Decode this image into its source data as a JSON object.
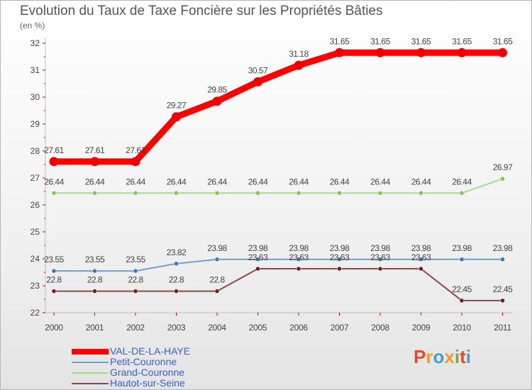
{
  "title": "Evolution du Taux de Taxe Foncière sur les Propriétés Bâties",
  "unit_label": "(en %)",
  "logo": {
    "letters": [
      "P",
      "r",
      "o",
      "x",
      "i",
      "t",
      "i"
    ],
    "colors": [
      "#e6462c",
      "#f29b1f",
      "#3aa0d8",
      "#f29b1f",
      "#63b046",
      "#e6462c",
      "#3aa0d8"
    ]
  },
  "chart_data": {
    "type": "line",
    "title": "Evolution du Taux de Taxe Foncière sur les Propriétés Bâties",
    "ylabel": "(en %)",
    "xlabel": "",
    "ylim": [
      22,
      32
    ],
    "yticks": [
      22,
      23,
      24,
      25,
      26,
      27,
      28,
      29,
      30,
      31,
      32
    ],
    "categories": [
      "2000",
      "2001",
      "2002",
      "2003",
      "2004",
      "2005",
      "2006",
      "2007",
      "2008",
      "2009",
      "2010",
      "2011"
    ],
    "series": [
      {
        "name": "VAL-DE-LA-HAYE",
        "color": "#ff0000",
        "marker": "#ee0000",
        "values": [
          27.61,
          27.61,
          27.61,
          29.27,
          29.85,
          30.57,
          31.18,
          31.65,
          31.65,
          31.65,
          31.65,
          31.65
        ],
        "labels": [
          "27.61",
          "27.61",
          "27.61",
          "29.27",
          "29.85",
          "30.57",
          "31.18",
          "31.65",
          "31.65",
          "31.65",
          "31.65",
          "31.65"
        ]
      },
      {
        "name": "Petit-Couronne",
        "color": "#6fa0cc",
        "marker": "#3a78b5",
        "values": [
          23.55,
          23.55,
          23.55,
          23.82,
          23.98,
          23.98,
          23.98,
          23.98,
          23.98,
          23.98,
          23.98,
          23.98
        ],
        "labels": [
          "23.55",
          "23.55",
          "23.55",
          "23.82",
          "23.98",
          "23.98",
          "23.98",
          "23.98",
          "23.98",
          "23.98",
          "23.98",
          "23.98"
        ]
      },
      {
        "name": "Grand-Couronne",
        "color": "#a6dc8a",
        "marker": "#7cc852",
        "values": [
          26.44,
          26.44,
          26.44,
          26.44,
          26.44,
          26.44,
          26.44,
          26.44,
          26.44,
          26.44,
          26.44,
          26.97
        ],
        "labels": [
          "26.44",
          "26.44",
          "26.44",
          "26.44",
          "26.44",
          "26.44",
          "26.44",
          "26.44",
          "26.44",
          "26.44",
          "26.44",
          "26.97"
        ]
      },
      {
        "name": "Hautot-sur-Seine",
        "color": "#8a4a4a",
        "marker": "#6a2020",
        "values": [
          22.8,
          22.8,
          22.8,
          22.8,
          22.8,
          23.63,
          23.63,
          23.63,
          23.63,
          23.63,
          22.45,
          22.45
        ],
        "labels": [
          "22.8",
          "22.8",
          "22.8",
          "22.8",
          "22.8",
          "23.63",
          "23.63",
          "23.63",
          "23.63",
          "23.63",
          "22.45",
          "22.45"
        ]
      }
    ],
    "legend_position": "bottom-left",
    "grid": false
  }
}
